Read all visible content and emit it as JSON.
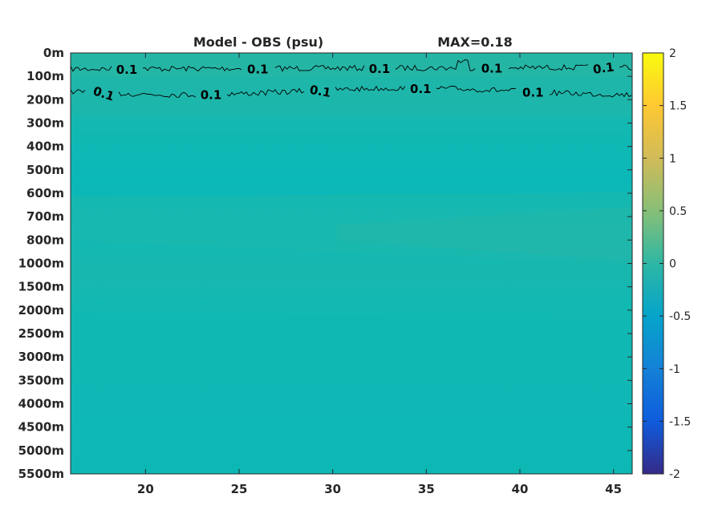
{
  "chart_data": {
    "type": "heatmap",
    "title": "Model - OBS (psu)",
    "annotation": "MAX=0.18",
    "x_ticks": [
      20,
      25,
      30,
      35,
      40,
      45
    ],
    "x_range": [
      16,
      46
    ],
    "y_ticks": [
      "0m",
      "100m",
      "200m",
      "300m",
      "400m",
      "500m",
      "600m",
      "700m",
      "800m",
      "1000m",
      "1500m",
      "2000m",
      "2500m",
      "3000m",
      "3500m",
      "4000m",
      "4500m",
      "5000m",
      "5500m"
    ],
    "colorbar": {
      "range": [
        -2,
        2
      ],
      "ticks": [
        "2",
        "1.5",
        "1",
        "0.5",
        "0",
        "-0.5",
        "-1",
        "-1.5",
        "-2"
      ],
      "colormap": "parula"
    },
    "contour_level": 0.1,
    "contour_label": "0.1",
    "contours": [
      {
        "depth_level": "~70m",
        "label_x": [
          19,
          26,
          32.5,
          38.5,
          44.5
        ]
      },
      {
        "depth_level": "~180m",
        "label_x": [
          17.7,
          23.5,
          29.3,
          34.7,
          40.7
        ]
      }
    ],
    "field": [
      {
        "from": "0m",
        "to": "100m",
        "value_approx": 0.15
      },
      {
        "from": "100m",
        "to": "200m",
        "value_approx": 0.12
      },
      {
        "from": "200m",
        "to": "300m",
        "value_approx": 0.04
      },
      {
        "from": "300m",
        "to": "600m",
        "value_approx": 0.0
      },
      {
        "from": "600m",
        "to": "1000m",
        "value_approx": 0.05
      },
      {
        "from": "1000m",
        "to": "2000m",
        "value_approx": 0.02
      },
      {
        "from": "2000m",
        "to": "5500m",
        "value_approx": 0.01
      }
    ],
    "grid": false,
    "legend": "colorbar-right"
  }
}
